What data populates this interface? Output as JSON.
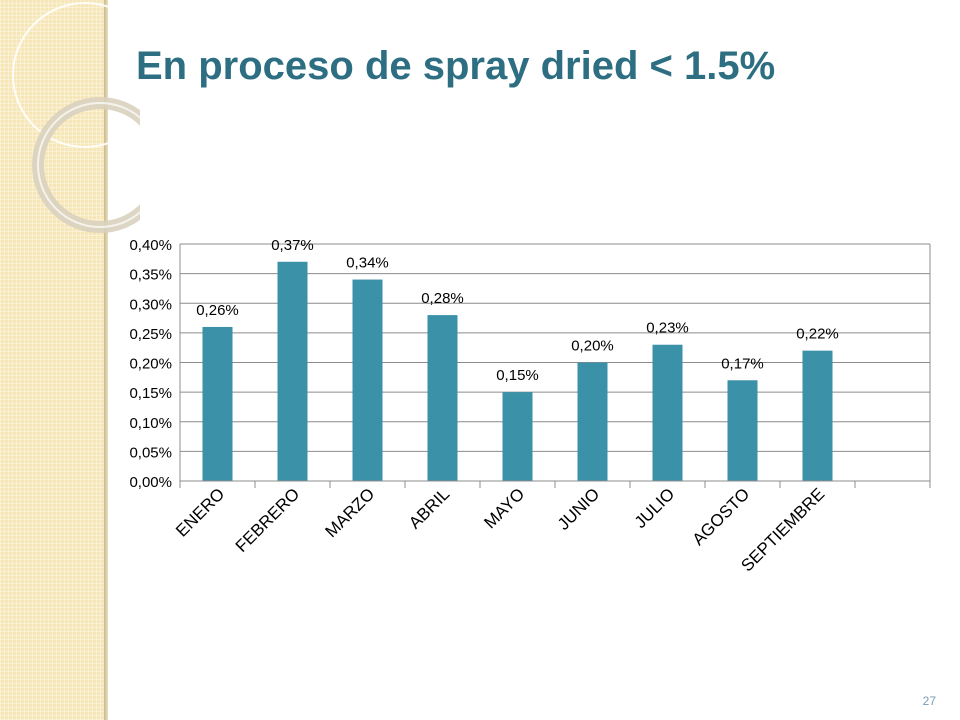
{
  "slide": {
    "title": "En proceso de spray dried < 1.5%",
    "page_number": "27"
  },
  "chart_data": {
    "type": "bar",
    "title": "",
    "xlabel": "",
    "ylabel": "",
    "categories": [
      "ENERO",
      "FEBRERO",
      "MARZO",
      "ABRIL",
      "MAYO",
      "JUNIO",
      "JULIO",
      "AGOSTO",
      "SEPTIEMBRE"
    ],
    "values": [
      0.26,
      0.37,
      0.34,
      0.28,
      0.15,
      0.2,
      0.23,
      0.17,
      0.22
    ],
    "data_labels": [
      "0,26%",
      "0,37%",
      "0,34%",
      "0,28%",
      "0,15%",
      "0,20%",
      "0,23%",
      "0,17%",
      "0,22%"
    ],
    "ylim": [
      0,
      0.4
    ],
    "yticks": [
      0,
      0.05,
      0.1,
      0.15,
      0.2,
      0.25,
      0.3,
      0.35,
      0.4
    ],
    "ytick_labels": [
      "0,00%",
      "0,05%",
      "0,10%",
      "0,15%",
      "0,20%",
      "0,25%",
      "0,30%",
      "0,35%",
      "0,40%"
    ],
    "category_slots": 10,
    "grid": true,
    "legend": false,
    "bar_color": "#3a91a8",
    "grid_color": "#8c8c8c"
  }
}
